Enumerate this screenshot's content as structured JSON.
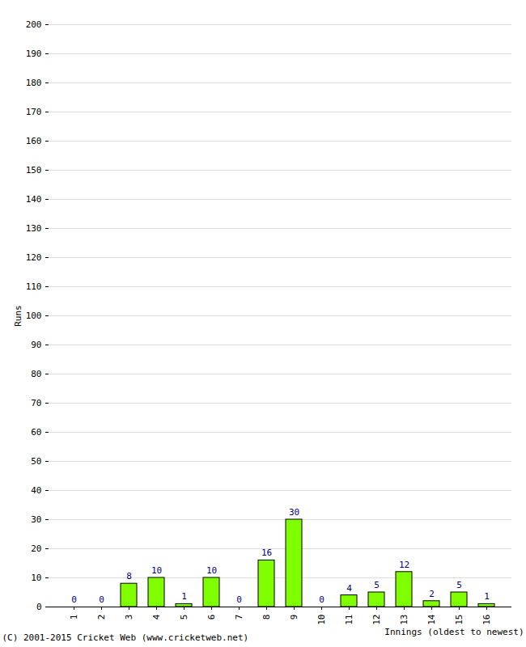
{
  "chart_data": {
    "type": "bar",
    "categories": [
      "1",
      "2",
      "3",
      "4",
      "5",
      "6",
      "7",
      "8",
      "9",
      "10",
      "11",
      "12",
      "13",
      "14",
      "15",
      "16"
    ],
    "values": [
      0,
      0,
      8,
      10,
      1,
      10,
      0,
      16,
      30,
      0,
      4,
      5,
      12,
      2,
      5,
      1
    ],
    "color": "#80ff00",
    "ylim": [
      0,
      200
    ],
    "yticks": [
      0,
      10,
      20,
      30,
      40,
      50,
      60,
      70,
      80,
      90,
      100,
      110,
      120,
      130,
      140,
      150,
      160,
      170,
      180,
      190,
      200
    ],
    "grid": true,
    "data_labels": true,
    "xlabel": "Innings (oldest to newest)",
    "ylabel": "Runs",
    "caption": "(C) 2001-2015 Cricket Web (www.cricketweb.net)"
  }
}
